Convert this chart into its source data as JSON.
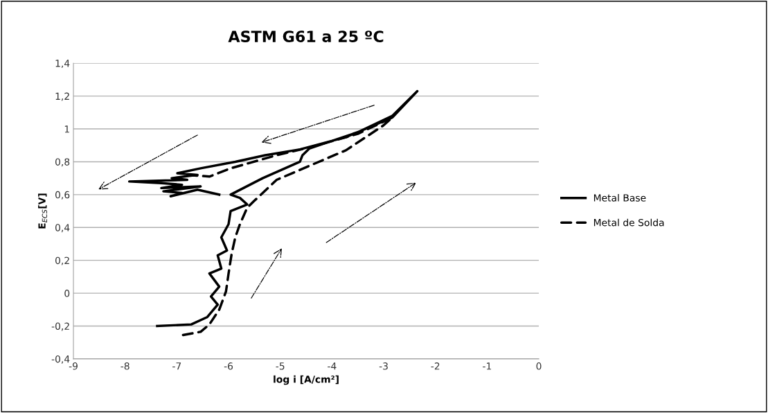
{
  "chart_data": {
    "type": "line",
    "title": "ASTM G61 a 25 ºC",
    "xlabel": "log i [A/cm²]",
    "ylabel": "E$_{ECS}$[V]",
    "xlim": [
      -9,
      0
    ],
    "xticks": [
      -9,
      -8,
      -7,
      -6,
      -5,
      -4,
      -3,
      -2,
      -1,
      0
    ],
    "ylim": [
      -0.4,
      1.4
    ],
    "yticks": [
      {
        "value": -0.4,
        "label": "-0,4"
      },
      {
        "value": -0.2,
        "label": "-0,2"
      },
      0,
      {
        "value": 0.2,
        "label": "0,2"
      },
      {
        "value": 0.4,
        "label": "0,4"
      },
      {
        "value": 0.6,
        "label": "0,6"
      },
      {
        "value": 0.8,
        "label": "0,8"
      },
      1,
      {
        "value": 1.2,
        "label": "1,2"
      },
      {
        "value": 1.4,
        "label": "1,4"
      }
    ],
    "grid": "y",
    "legend": "right",
    "marker": "none",
    "series": [
      {
        "name": "Metal Base",
        "color": "#000000",
        "line_style": "solid",
        "x": [
          -7.38,
          -6.72,
          -6.41,
          -6.21,
          -6.34,
          -6.18,
          -6.37,
          -6.14,
          -6.21,
          -6.03,
          -6.14,
          -6.0,
          -5.96,
          -5.64,
          -5.78,
          -5.96,
          -5.34,
          -4.62,
          -4.57,
          -4.44,
          -3.5,
          -2.83,
          -2.35,
          -2.83,
          -3.73,
          -4.62,
          -5.29,
          -5.87,
          -6.54,
          -6.99,
          -6.6,
          -7.1,
          -6.8,
          -7.92,
          -7.3,
          -6.9,
          -7.3,
          -6.54,
          -7.26,
          -6.9,
          -7.12,
          -6.6,
          -6.18
        ],
        "values": [
          -0.2,
          -0.19,
          -0.145,
          -0.07,
          -0.02,
          0.04,
          0.12,
          0.15,
          0.23,
          0.26,
          0.34,
          0.42,
          0.5,
          0.54,
          0.58,
          0.6,
          0.7,
          0.8,
          0.84,
          0.88,
          0.98,
          1.08,
          1.23,
          1.07,
          0.95,
          0.875,
          0.84,
          0.8,
          0.76,
          0.73,
          0.72,
          0.7,
          0.69,
          0.68,
          0.67,
          0.66,
          0.64,
          0.65,
          0.62,
          0.61,
          0.59,
          0.63,
          0.6
        ]
      },
      {
        "name": "Metal de Solda",
        "color": "#000000",
        "line_style": "dashed",
        "x": [
          -6.88,
          -6.54,
          -6.37,
          -6.18,
          -6.05,
          -6.0,
          -5.94,
          -5.87,
          -5.78,
          -5.64,
          -5.51,
          -5.07,
          -4.4,
          -3.73,
          -3.01,
          -2.83,
          -3.5,
          -4.4,
          -5.07,
          -5.96,
          -6.37,
          -6.8
        ],
        "values": [
          -0.255,
          -0.235,
          -0.19,
          -0.1,
          0.01,
          0.12,
          0.24,
          0.34,
          0.42,
          0.52,
          0.56,
          0.69,
          0.78,
          0.87,
          1.02,
          1.07,
          0.97,
          0.89,
          0.84,
          0.76,
          0.71,
          0.72
        ]
      }
    ]
  }
}
